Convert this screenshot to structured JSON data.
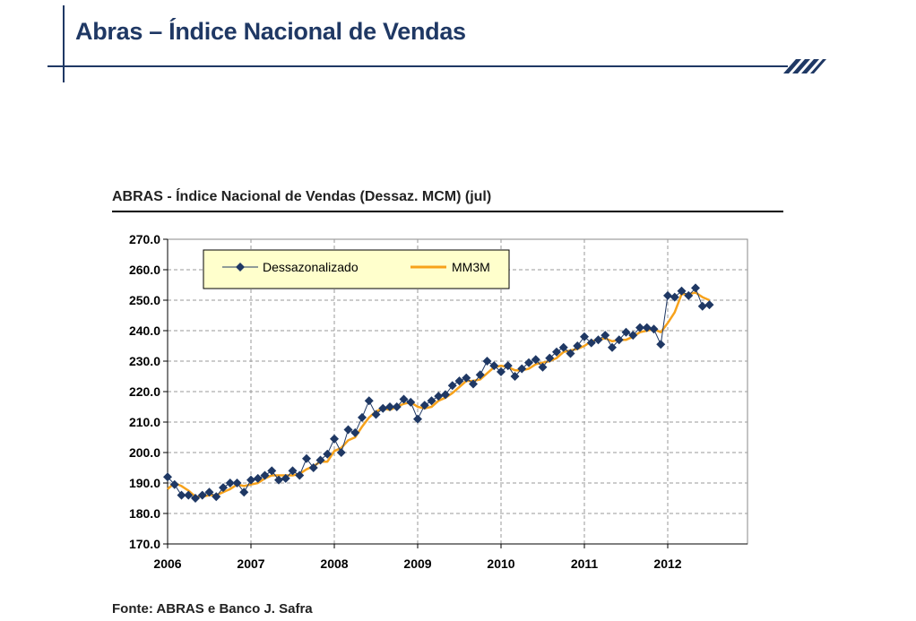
{
  "slide": {
    "title": "Abras – Índice Nacional de Vendas",
    "source": "Fonte: ABRAS e Banco J. Safra",
    "accent_color": "#1f3864"
  },
  "chart_data": {
    "type": "line",
    "title": "ABRAS - Índice Nacional de Vendas (Dessaz. MCM) (jul)",
    "xlabel": "",
    "ylabel": "",
    "ylim": [
      170,
      270
    ],
    "yticks": [
      "170.0",
      "180.0",
      "190.0",
      "200.0",
      "210.0",
      "220.0",
      "230.0",
      "240.0",
      "250.0",
      "260.0",
      "270.0"
    ],
    "xticks": [
      "2006",
      "2007",
      "2008",
      "2009",
      "2010",
      "2011",
      "2012"
    ],
    "x_start": "2006-01",
    "x_frequency": "monthly",
    "grid": true,
    "legend": "top-left",
    "series": [
      {
        "name": "Dessazonalizado",
        "color": "#1f3864",
        "marker": "diamond",
        "values": [
          192.0,
          189.5,
          186.0,
          186.0,
          185.0,
          186.0,
          187.0,
          185.5,
          188.5,
          190.0,
          190.0,
          187.0,
          191.0,
          191.5,
          192.5,
          194.0,
          191.0,
          191.5,
          194.0,
          192.5,
          198.0,
          195.0,
          197.5,
          199.5,
          204.5,
          200.0,
          207.5,
          206.5,
          211.5,
          217.0,
          212.5,
          214.5,
          215.0,
          215.0,
          217.5,
          216.5,
          211.0,
          215.5,
          217.0,
          218.5,
          219.0,
          222.0,
          223.5,
          224.5,
          222.5,
          225.5,
          230.0,
          228.5,
          226.5,
          228.5,
          225.0,
          227.5,
          229.5,
          230.5,
          228.0,
          231.0,
          233.0,
          234.5,
          232.5,
          235.0,
          238.0,
          236.0,
          237.0,
          238.5,
          234.5,
          237.0,
          239.5,
          238.5,
          241.0,
          241.0,
          240.5,
          235.5,
          251.5,
          251.0,
          253.0,
          251.5,
          254.0,
          248.0,
          248.5
        ]
      },
      {
        "name": "MM3M",
        "color": "#f7a21b",
        "marker": "none",
        "values": [
          188.0,
          190.0,
          189.0,
          187.5,
          185.5,
          185.5,
          186.0,
          186.0,
          187.0,
          188.0,
          189.5,
          189.0,
          189.5,
          190.0,
          191.5,
          192.5,
          192.5,
          192.5,
          192.5,
          193.0,
          194.5,
          195.5,
          197.0,
          197.0,
          200.5,
          201.5,
          204.0,
          205.0,
          208.5,
          211.5,
          213.5,
          214.5,
          214.0,
          215.0,
          216.0,
          216.5,
          215.0,
          214.5,
          215.0,
          217.0,
          218.0,
          219.5,
          221.5,
          223.5,
          223.5,
          224.0,
          226.0,
          228.0,
          228.5,
          228.0,
          227.0,
          227.0,
          227.5,
          229.0,
          229.5,
          230.0,
          231.0,
          233.0,
          233.5,
          234.0,
          235.0,
          236.5,
          237.0,
          237.5,
          236.5,
          237.0,
          237.0,
          238.0,
          239.5,
          240.0,
          240.5,
          239.5,
          242.5,
          246.0,
          252.0,
          252.0,
          252.5,
          251.0,
          250.0
        ]
      }
    ]
  }
}
